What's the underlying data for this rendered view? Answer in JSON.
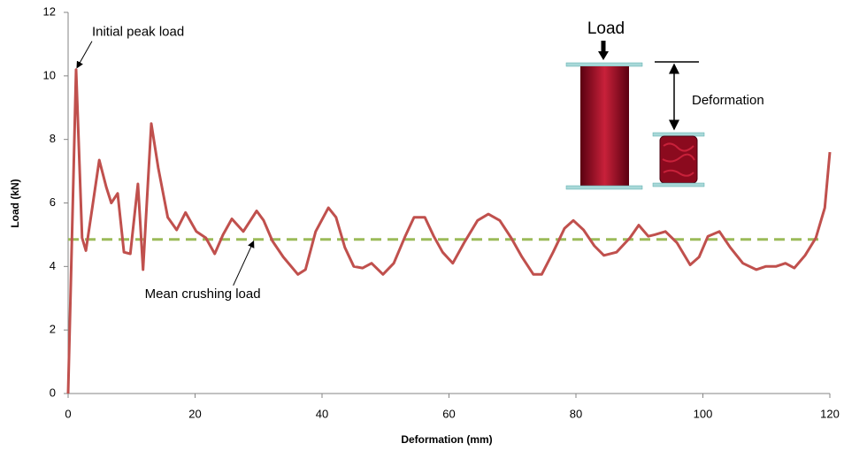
{
  "chart_data": {
    "type": "line",
    "x_label": "Deformation (mm)",
    "y_label": "Load (kN)",
    "xlim": [
      0,
      120
    ],
    "xticks": [
      0,
      20,
      40,
      60,
      80,
      100,
      120
    ],
    "ylim": [
      0,
      12
    ],
    "yticks": [
      0,
      2,
      4,
      6,
      8,
      10,
      12
    ],
    "grid": false,
    "series": [
      {
        "color": "#c0504d",
        "x": [
          0,
          1.25,
          2.2,
          2.8,
          3.8,
          4.9,
          6,
          6.8,
          7.8,
          8.8,
          9.8,
          11,
          11.8,
          13.1,
          14.2,
          15.7,
          17.1,
          18.5,
          20.2,
          21.7,
          23.1,
          24.4,
          25.8,
          27.6,
          29.7,
          30.8,
          32.2,
          33.9,
          36.2,
          37.4,
          39,
          41,
          42.2,
          43.6,
          45,
          46.4,
          47.8,
          49.6,
          51.3,
          53.1,
          54.5,
          56.2,
          57.6,
          59,
          60.6,
          62.4,
          64.5,
          66.2,
          68,
          69.8,
          71.5,
          73.3,
          74.6,
          76.4,
          78.2,
          79.6,
          81.2,
          82.9,
          84.4,
          86.4,
          88.5,
          89.9,
          91.4,
          92.4,
          94.1,
          95.9,
          98,
          99.4,
          100.8,
          102.6,
          104.3,
          106.3,
          108.4,
          109.9,
          111.5,
          113,
          114.4,
          116.1,
          117.8,
          119.2,
          120
        ],
        "values": [
          0,
          10.2,
          4.9,
          4.5,
          5.85,
          7.35,
          6.5,
          6,
          6.3,
          4.45,
          4.4,
          6.6,
          3.9,
          8.5,
          7.1,
          5.55,
          5.15,
          5.7,
          5.1,
          4.9,
          4.4,
          5,
          5.5,
          5.1,
          5.75,
          5.45,
          4.8,
          4.3,
          3.75,
          3.9,
          5.1,
          5.85,
          5.55,
          4.6,
          4,
          3.95,
          4.1,
          3.75,
          4.1,
          4.95,
          5.55,
          5.55,
          4.95,
          4.45,
          4.1,
          4.75,
          5.45,
          5.65,
          5.45,
          4.9,
          4.3,
          3.75,
          3.75,
          4.45,
          5.2,
          5.45,
          5.15,
          4.65,
          4.35,
          4.45,
          4.9,
          5.3,
          4.95,
          5,
          5.1,
          4.75,
          4.05,
          4.3,
          4.95,
          5.1,
          4.6,
          4.1,
          3.9,
          4,
          4,
          4.1,
          3.95,
          4.35,
          4.9,
          5.85,
          7.6
        ]
      }
    ],
    "mean_line": {
      "value": 4.85,
      "xlim": [
        0,
        118.5
      ],
      "color": "#9bbb59"
    },
    "annotations": [
      {
        "text": "Initial peak load",
        "x": 1.25,
        "y": 10.2
      },
      {
        "text": "Mean crushing load",
        "x": 29.5,
        "y": 4.85
      }
    ],
    "inset": {
      "load_label": "Load",
      "deformation_label": "Deformation"
    }
  }
}
